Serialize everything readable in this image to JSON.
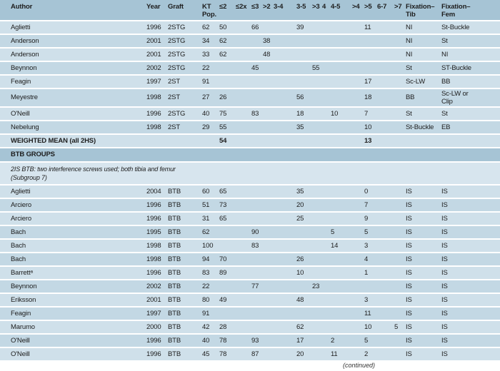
{
  "theme": {
    "header_bg": "#a6c4d5",
    "row_light": "#cfe0ea",
    "row_dark": "#c3d8e4",
    "note_bg": "#d7e5ee",
    "text_color": "#1d1d1d"
  },
  "table": {
    "columns": [
      {
        "key": "author",
        "label": "Author"
      },
      {
        "key": "year",
        "label": "Year"
      },
      {
        "key": "graft",
        "label": "Graft"
      },
      {
        "key": "kt",
        "label": "KT",
        "label2": "Pop."
      },
      {
        "key": "le2",
        "label": "≤2"
      },
      {
        "key": "le2x",
        "label": "≤2x"
      },
      {
        "key": "le3",
        "label": "≤3"
      },
      {
        "key": "gt2",
        "label": ">2"
      },
      {
        "key": "r34",
        "label": "3-4"
      },
      {
        "key": "r35",
        "label": "3-5"
      },
      {
        "key": "gt3",
        "label": ">3"
      },
      {
        "key": "r4",
        "label": "4"
      },
      {
        "key": "r45",
        "label": "4-5"
      },
      {
        "key": "gt4",
        "label": ">4"
      },
      {
        "key": "gt5",
        "label": ">5"
      },
      {
        "key": "r67",
        "label": "6-7"
      },
      {
        "key": "gt7",
        "label": ">7"
      },
      {
        "key": "fixtib",
        "label": "Fixation–",
        "label2": "Tib"
      },
      {
        "key": "fixfem",
        "label": "Fixation–",
        "label2": "Fem"
      }
    ],
    "rows": [
      {
        "type": "data",
        "cells": {
          "author": "Aglietti",
          "year": "1996",
          "graft": "2STG",
          "kt": "62",
          "le2": "50",
          "le3": "66",
          "r35": "39",
          "gt5": "11",
          "fixtib": "NI",
          "fixfem": "St-Buckle"
        }
      },
      {
        "type": "data",
        "cells": {
          "author": "Anderson",
          "year": "2001",
          "graft": "2STG",
          "kt": "34",
          "le2": "62",
          "gt2": "38",
          "fixtib": "NI",
          "fixfem": "St"
        }
      },
      {
        "type": "data",
        "cells": {
          "author": "Anderson",
          "year": "2001",
          "graft": "2STG",
          "kt": "33",
          "le2": "62",
          "gt2": "48",
          "fixtib": "NI",
          "fixfem": "NI"
        }
      },
      {
        "type": "data",
        "cells": {
          "author": "Beynnon",
          "year": "2002",
          "graft": "2STG",
          "kt": "22",
          "le3": "45",
          "gt3": "55",
          "fixtib": "St",
          "fixfem": "ST-Buckle"
        }
      },
      {
        "type": "data",
        "cells": {
          "author": "Feagin",
          "year": "1997",
          "graft": "2ST",
          "kt": "91",
          "gt5": "17",
          "fixtib": "Sc-LW",
          "fixfem": "BB"
        }
      },
      {
        "type": "data",
        "tall": true,
        "cells": {
          "author": "Meyestre",
          "year": "1998",
          "graft": "2ST",
          "kt": "27",
          "le2": "26",
          "r35": "56",
          "gt5": "18",
          "fixtib": "BB",
          "fixfem": "Sc-LW or Clip"
        }
      },
      {
        "type": "data",
        "cells": {
          "author": "O'Neill",
          "year": "1996",
          "graft": "2STG",
          "kt": "40",
          "le2": "75",
          "le3": "83",
          "r35": "18",
          "r45": "10",
          "gt5": "7",
          "fixtib": "St",
          "fixfem": "St"
        }
      },
      {
        "type": "data",
        "cells": {
          "author": "Nebelung",
          "year": "1998",
          "graft": "2ST",
          "kt": "29",
          "le2": "55",
          "r35": "35",
          "gt5": "10",
          "fixtib": "St-Buckle",
          "fixfem": "EB"
        }
      },
      {
        "type": "summary",
        "cells": {
          "author": "WEIGHTED MEAN (all 2HS)",
          "le2": "54",
          "gt5": "13"
        }
      },
      {
        "type": "band",
        "label": "BTB GROUPS"
      },
      {
        "type": "note",
        "lines": [
          "2IS BTB: two interference screws used; both tibia and femur",
          "(Subgroup 7)"
        ]
      },
      {
        "type": "data",
        "cells": {
          "author": "Aglietti",
          "year": "2004",
          "graft": "BTB",
          "kt": "60",
          "le2": "65",
          "r35": "35",
          "gt5": "0",
          "fixtib": "IS",
          "fixfem": "IS"
        }
      },
      {
        "type": "data",
        "cells": {
          "author": "Arciero",
          "year": "1996",
          "graft": "BTB",
          "kt": "51",
          "le2": "73",
          "r35": "20",
          "gt5": "7",
          "fixtib": "IS",
          "fixfem": "IS"
        }
      },
      {
        "type": "data",
        "cells": {
          "author": "Arciero",
          "year": "1996",
          "graft": "BTB",
          "kt": "31",
          "le2": "65",
          "r35": "25",
          "gt5": "9",
          "fixtib": "IS",
          "fixfem": "IS"
        }
      },
      {
        "type": "data",
        "cells": {
          "author": "Bach",
          "year": "1995",
          "graft": "BTB",
          "kt": "62",
          "le3": "90",
          "r45": "5",
          "gt5": "5",
          "fixtib": "IS",
          "fixfem": "IS"
        }
      },
      {
        "type": "data",
        "cells": {
          "author": "Bach",
          "year": "1998",
          "graft": "BTB",
          "kt": "100",
          "le3": "83",
          "r45": "14",
          "gt5": "3",
          "fixtib": "IS",
          "fixfem": "IS"
        }
      },
      {
        "type": "data",
        "cells": {
          "author": "Bach",
          "year": "1998",
          "graft": "BTB",
          "kt": "94",
          "le2": "70",
          "r35": "26",
          "gt5": "4",
          "fixtib": "IS",
          "fixfem": "IS"
        }
      },
      {
        "type": "data",
        "cells": {
          "author": "Barrettᵃ",
          "year": "1996",
          "graft": "BTB",
          "kt": "83",
          "le2": "89",
          "r35": "10",
          "gt5": "1",
          "fixtib": "IS",
          "fixfem": "IS"
        }
      },
      {
        "type": "data",
        "cells": {
          "author": "Beynnon",
          "year": "2002",
          "graft": "BTB",
          "kt": "22",
          "le3": "77",
          "gt3": "23",
          "fixtib": "IS",
          "fixfem": "IS"
        }
      },
      {
        "type": "data",
        "cells": {
          "author": "Eriksson",
          "year": "2001",
          "graft": "BTB",
          "kt": "80",
          "le2": "49",
          "r35": "48",
          "gt5": "3",
          "fixtib": "IS",
          "fixfem": "IS"
        }
      },
      {
        "type": "data",
        "cells": {
          "author": "Feagin",
          "year": "1997",
          "graft": "BTB",
          "kt": "91",
          "gt5": "11",
          "fixtib": "IS",
          "fixfem": "IS"
        }
      },
      {
        "type": "data",
        "cells": {
          "author": "Marumo",
          "year": "2000",
          "graft": "BTB",
          "kt": "42",
          "le2": "28",
          "r35": "62",
          "gt5": "10",
          "gt7": "5",
          "fixtib": "IS",
          "fixfem": "IS"
        }
      },
      {
        "type": "data",
        "cells": {
          "author": "O'Neill",
          "year": "1996",
          "graft": "BTB",
          "kt": "40",
          "le2": "78",
          "le3": "93",
          "r35": "17",
          "r45": "2",
          "gt5": "5",
          "fixtib": "IS",
          "fixfem": "IS"
        }
      },
      {
        "type": "data",
        "cells": {
          "author": "O'Neill",
          "year": "1996",
          "graft": "BTB",
          "kt": "45",
          "le2": "78",
          "le3": "87",
          "r35": "20",
          "r45": "11",
          "gt5": "2",
          "fixtib": "IS",
          "fixfem": "IS"
        }
      }
    ],
    "footer": "(continued)"
  }
}
